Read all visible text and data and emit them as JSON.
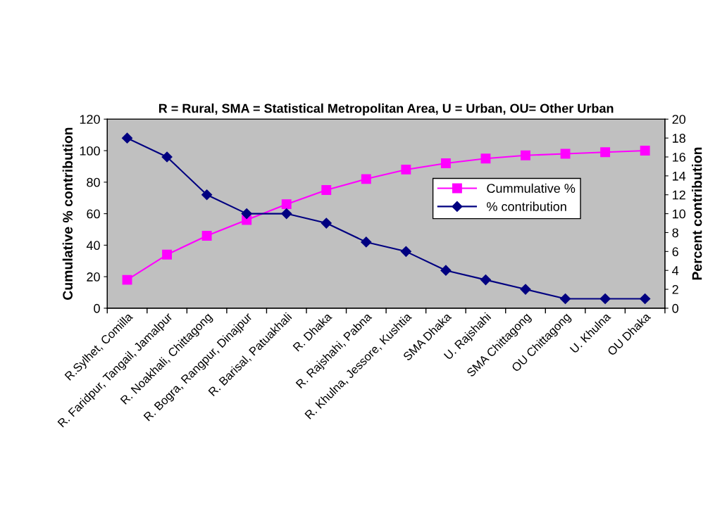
{
  "chart_data": {
    "type": "line",
    "ylabel": "Cumulative % contribution",
    "y2label": "Percent contribution",
    "annotations": [
      "R = Rural, SMA = Statistical Metropolitan Area, U = Urban, OU= Other Urban"
    ],
    "categories": [
      "R.Sylhet, Comilla",
      "R. Faridpur, Tangail, Jamalpur",
      "R. Noakhali, Chittagong",
      "R. Bogra, Rangpur, Dinajpur",
      "R. Barisal, Patuakhali",
      "R. Dhaka",
      "R. Rajshahi, Pabna",
      "R. Khulna, Jessore, Kushtia",
      "SMA Dhaka",
      "U. Rajshahi",
      "SMA Chittagong",
      "OU Chittagong",
      "U. Khulna",
      "OU Dhaka"
    ],
    "series": [
      {
        "name": "Cummulative %",
        "color": "#ff00ff",
        "marker": "square",
        "values": [
          18,
          34,
          46,
          56,
          66,
          75,
          82,
          88,
          92,
          95,
          97,
          98,
          99,
          100
        ]
      },
      {
        "name": "% contribution",
        "color": "#000080",
        "marker": "diamond",
        "axis": "y2",
        "values": [
          18,
          16,
          12,
          10,
          10,
          9,
          7,
          6,
          4,
          3,
          2,
          1,
          1,
          1
        ]
      }
    ],
    "ylim": [
      0,
      120
    ],
    "yticks": [
      0,
      20,
      40,
      60,
      80,
      100,
      120
    ],
    "y2lim": [
      0,
      20
    ],
    "y2ticks": [
      0,
      2,
      4,
      6,
      8,
      10,
      12,
      14,
      16,
      18,
      20
    ],
    "grid": false,
    "legend": "right",
    "line_style": "solid"
  }
}
